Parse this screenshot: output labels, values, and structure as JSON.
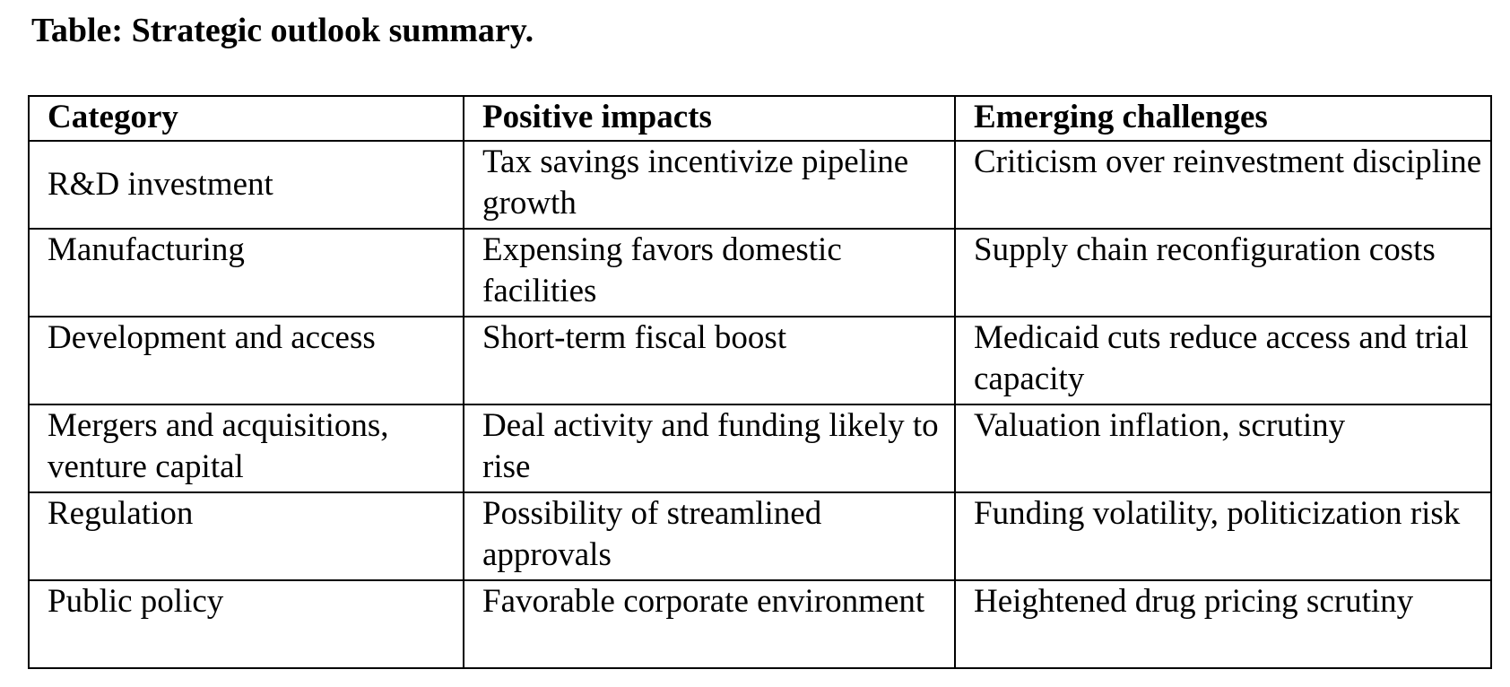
{
  "caption": "Table: Strategic outlook summary.",
  "table": {
    "headers": [
      "Category",
      "Positive impacts",
      "Emerging challenges"
    ],
    "rows": [
      [
        "R&D investment",
        "Tax savings incentivize pipeline growth",
        "Criticism over reinvestment discipline"
      ],
      [
        "Manufacturing",
        "Expensing favors domestic facilities",
        "Supply chain reconfiguration costs"
      ],
      [
        "Development and access",
        "Short-term fiscal boost",
        "Medicaid cuts reduce access and trial capacity"
      ],
      [
        "Mergers and acquisitions, venture capital",
        "Deal activity and funding likely to rise",
        "Valuation inflation, scrutiny"
      ],
      [
        "Regulation",
        "Possibility of streamlined approvals",
        "Funding volatility, politicization risk"
      ],
      [
        "Public policy",
        "Favorable corporate environment",
        "Heightened drug pricing scrutiny"
      ]
    ]
  }
}
